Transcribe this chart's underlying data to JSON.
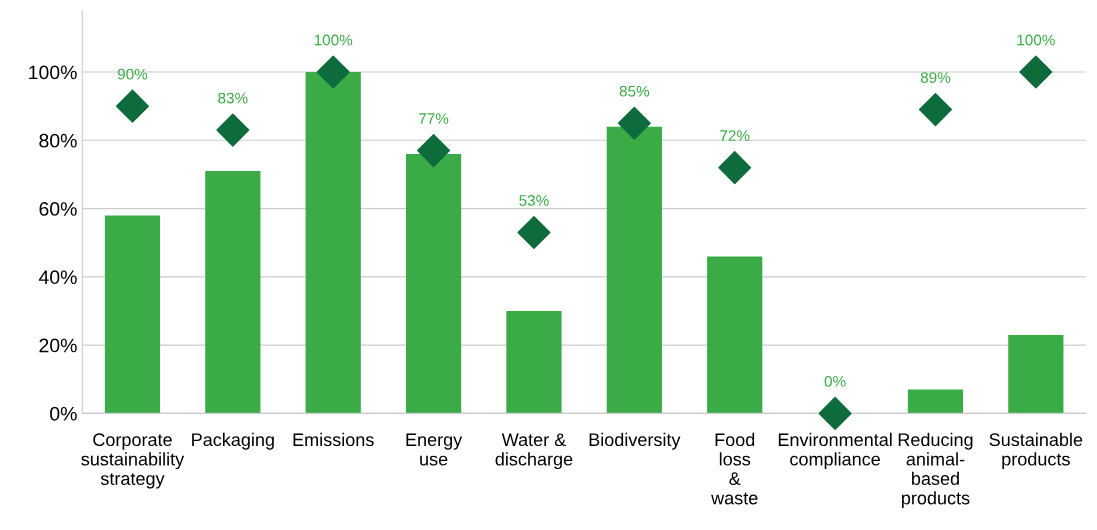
{
  "chart_data": {
    "type": "bar",
    "categories": [
      "Corporate\nsustainability\nstrategy",
      "Packaging",
      "Emissions",
      "Energy\nuse",
      "Water &\ndischarge",
      "Biodiversity",
      "Food\nloss\n&\nwaste",
      "Environmental\ncompliance",
      "Reducing\nanimal-\nbased\nproducts",
      "Sustainable\nproducts"
    ],
    "series": [
      {
        "color": "#3aab47",
        "values": [
          58,
          71,
          100,
          76,
          30,
          84,
          46,
          0,
          7,
          23
        ]
      },
      {
        "type": "scatter",
        "color": "#0e6b3b",
        "values": [
          90,
          83,
          100,
          77,
          53,
          85,
          72,
          0,
          89,
          100
        ],
        "value_labels": [
          "90%",
          "83%",
          "100%",
          "77%",
          "53%",
          "85%",
          "72%",
          "0%",
          "89%",
          "100%"
        ],
        "marker": "diamond"
      }
    ],
    "ylim": [
      0,
      118
    ],
    "yticks": [
      {
        "value": 0,
        "label": "0%"
      },
      {
        "value": 20,
        "label": "20%"
      },
      {
        "value": 40,
        "label": "40%"
      },
      {
        "value": 60,
        "label": "60%"
      },
      {
        "value": 80,
        "label": "80%"
      },
      {
        "value": 100,
        "label": "100%"
      }
    ],
    "grid": "y",
    "legend": false
  }
}
